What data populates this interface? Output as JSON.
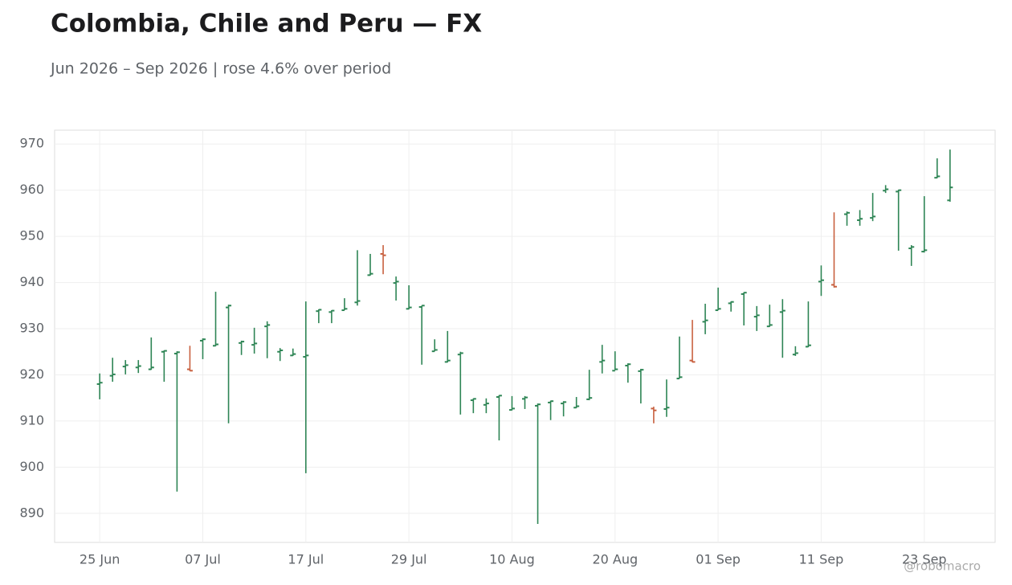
{
  "chart_data": {
    "type": "ohlc",
    "title": "Colombia, Chile and Peru — FX",
    "subtitle": "Jun 2026 – Sep 2026 | rose 4.6% over period",
    "credit": "@robomacro",
    "up_color": "#2e8555",
    "down_color": "#c8603f",
    "grid": true,
    "x": [
      "2026-06-25",
      "2026-06-26",
      "2026-06-29",
      "2026-06-30",
      "2026-07-01",
      "2026-07-02",
      "2026-07-03",
      "2026-07-06",
      "2026-07-07",
      "2026-07-08",
      "2026-07-09",
      "2026-07-10",
      "2026-07-13",
      "2026-07-14",
      "2026-07-15",
      "2026-07-16",
      "2026-07-17",
      "2026-07-20",
      "2026-07-21",
      "2026-07-22",
      "2026-07-23",
      "2026-07-24",
      "2026-07-27",
      "2026-07-28",
      "2026-07-29",
      "2026-07-30",
      "2026-07-31",
      "2026-08-03",
      "2026-08-04",
      "2026-08-05",
      "2026-08-06",
      "2026-08-07",
      "2026-08-10",
      "2026-08-11",
      "2026-08-12",
      "2026-08-13",
      "2026-08-14",
      "2026-08-17",
      "2026-08-18",
      "2026-08-19",
      "2026-08-20",
      "2026-08-21",
      "2026-08-24",
      "2026-08-25",
      "2026-08-26",
      "2026-08-27",
      "2026-08-28",
      "2026-08-31",
      "2026-09-01",
      "2026-09-02",
      "2026-09-03",
      "2026-09-04",
      "2026-09-07",
      "2026-09-08",
      "2026-09-09",
      "2026-09-10",
      "2026-09-11",
      "2026-09-14",
      "2026-09-15",
      "2026-09-16",
      "2026-09-17",
      "2026-09-18",
      "2026-09-21",
      "2026-09-22",
      "2026-09-23",
      "2026-09-24",
      "2026-09-25"
    ],
    "open": [
      918.0,
      919.8,
      921.8,
      921.6,
      921.2,
      925.0,
      924.6,
      921.2,
      927.4,
      926.3,
      934.6,
      926.9,
      926.5,
      930.5,
      925.0,
      924.2,
      923.9,
      933.8,
      933.6,
      934.0,
      935.7,
      941.6,
      946.2,
      939.9,
      934.3,
      934.7,
      925.1,
      922.8,
      924.4,
      914.5,
      913.5,
      915.2,
      912.4,
      914.8,
      913.3,
      914.0,
      913.8,
      912.9,
      914.7,
      922.8,
      920.9,
      922.0,
      920.8,
      912.7,
      912.6,
      919.2,
      923.1,
      931.5,
      934.0,
      935.5,
      937.5,
      932.6,
      930.5,
      933.6,
      924.4,
      926.1,
      940.2,
      939.5,
      954.8,
      953.5,
      954.0,
      959.9,
      959.7,
      947.4,
      946.7,
      962.7,
      957.8
    ],
    "high": [
      920.3,
      923.7,
      923.2,
      923.2,
      928.1,
      925.3,
      925.1,
      926.3,
      927.9,
      938.0,
      935.2,
      927.4,
      930.2,
      931.6,
      925.8,
      925.7,
      935.9,
      934.2,
      934.0,
      936.6,
      947.0,
      946.2,
      948.1,
      941.3,
      939.4,
      935.0,
      927.7,
      929.5,
      925.0,
      914.9,
      914.9,
      915.6,
      915.4,
      915.4,
      913.8,
      914.4,
      914.3,
      915.2,
      921.1,
      926.5,
      925.1,
      922.5,
      921.3,
      913.1,
      919.0,
      928.3,
      931.9,
      935.4,
      938.9,
      935.9,
      937.9,
      934.9,
      935.2,
      936.4,
      926.2,
      935.9,
      943.7,
      955.2,
      955.4,
      955.7,
      959.4,
      961.1,
      960.1,
      948.1,
      958.7,
      966.9,
      968.8
    ],
    "low": [
      914.7,
      918.5,
      920.1,
      920.4,
      921.1,
      918.5,
      894.7,
      920.8,
      923.4,
      926.2,
      909.5,
      924.3,
      924.6,
      923.6,
      923.0,
      924.1,
      898.7,
      931.2,
      931.2,
      934.0,
      935.0,
      941.5,
      941.8,
      936.1,
      934.2,
      922.2,
      925.1,
      922.7,
      911.4,
      911.7,
      911.7,
      905.8,
      912.3,
      912.6,
      887.7,
      910.2,
      911.0,
      912.8,
      914.5,
      920.3,
      921.0,
      918.3,
      913.8,
      909.5,
      910.9,
      919.2,
      922.7,
      928.8,
      934.0,
      933.7,
      930.7,
      929.5,
      930.4,
      923.7,
      924.1,
      926.0,
      937.1,
      938.9,
      952.3,
      952.3,
      953.3,
      959.4,
      946.9,
      943.6,
      946.5,
      962.6,
      957.5
    ],
    "close": [
      918.3,
      920.1,
      922.1,
      921.9,
      921.6,
      925.2,
      924.9,
      920.9,
      927.7,
      926.6,
      935.0,
      927.2,
      926.8,
      930.8,
      925.3,
      924.5,
      924.2,
      934.1,
      933.9,
      934.3,
      936.0,
      941.9,
      945.9,
      940.2,
      934.6,
      935.0,
      925.4,
      923.1,
      924.7,
      914.8,
      913.8,
      915.5,
      912.7,
      915.1,
      913.6,
      914.3,
      914.1,
      913.2,
      915.0,
      923.1,
      921.2,
      922.3,
      921.1,
      912.3,
      912.9,
      919.5,
      922.8,
      931.8,
      934.3,
      935.8,
      937.8,
      932.9,
      930.8,
      933.9,
      924.7,
      926.4,
      940.5,
      939.1,
      955.1,
      953.8,
      954.3,
      960.2,
      960.0,
      947.7,
      947.0,
      963.0,
      960.6
    ],
    "ylim": [
      883.7,
      973.0
    ],
    "yticks": [
      890,
      900,
      910,
      920,
      930,
      940,
      950,
      960,
      970
    ],
    "xticks": [
      {
        "value": "2026-06-25",
        "label": "25 Jun"
      },
      {
        "value": "2026-07-07",
        "label": "07 Jul"
      },
      {
        "value": "2026-07-17",
        "label": "17 Jul"
      },
      {
        "value": "2026-07-29",
        "label": "29 Jul"
      },
      {
        "value": "2026-08-10",
        "label": "10 Aug"
      },
      {
        "value": "2026-08-20",
        "label": "20 Aug"
      },
      {
        "value": "2026-09-01",
        "label": "01 Sep"
      },
      {
        "value": "2026-09-11",
        "label": "11 Sep"
      },
      {
        "value": "2026-09-23",
        "label": "23 Sep"
      }
    ]
  }
}
